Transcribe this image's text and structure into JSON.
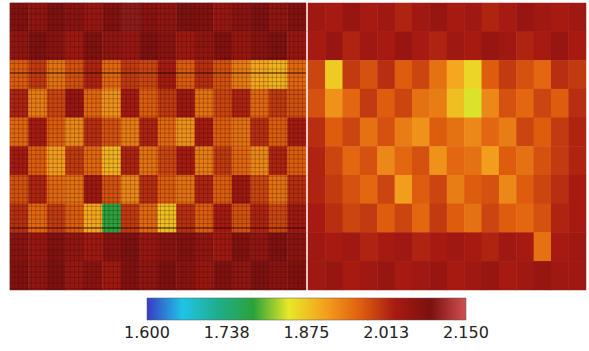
{
  "chart_data": {
    "type": "heatmap",
    "tick_labels": false,
    "panels": [
      {
        "grid": true,
        "cells": [
          [
            2.08,
            2.06,
            2.09,
            2.07,
            2.05,
            2.08,
            2.1,
            2.07,
            2.06,
            2.09,
            2.08,
            2.05,
            2.07,
            2.09,
            2.06,
            2.08
          ],
          [
            2.06,
            2.09,
            2.07,
            2.04,
            2.08,
            2.06,
            2.05,
            2.09,
            2.07,
            2.04,
            2.06,
            2.08,
            2.05,
            2.07,
            2.09,
            2.05
          ],
          [
            1.97,
            2.0,
            1.95,
            1.98,
            2.02,
            1.96,
            2.0,
            1.99,
            2.03,
            1.97,
            2.01,
            1.98,
            1.94,
            1.9,
            1.89,
            1.96
          ],
          [
            2.02,
            1.94,
            1.99,
            2.05,
            1.96,
            1.92,
            2.03,
            1.97,
            2.0,
            2.04,
            1.95,
            1.99,
            2.02,
            1.96,
            2.0,
            1.98
          ],
          [
            1.96,
            2.03,
            1.97,
            1.93,
            2.01,
            1.98,
            1.94,
            2.02,
            1.96,
            1.92,
            2.03,
            1.97,
            1.95,
            2.01,
            1.97,
            2.03
          ],
          [
            2.03,
            1.97,
            1.91,
            2.0,
            1.96,
            1.89,
            2.02,
            1.95,
            1.99,
            2.03,
            1.94,
            2.0,
            1.96,
            1.93,
            2.02,
            1.97
          ],
          [
            1.98,
            2.02,
            1.96,
            1.95,
            2.04,
            1.98,
            1.93,
            2.01,
            1.97,
            1.95,
            2.02,
            1.97,
            2.04,
            1.99,
            1.95,
            2.01
          ],
          [
            2.01,
            1.96,
            2.0,
            1.97,
            1.9,
            1.78,
            2.0,
            1.96,
            1.88,
            2.01,
            1.97,
            2.03,
            1.98,
            2.02,
            1.99,
            2.04
          ],
          [
            2.07,
            2.05,
            2.08,
            2.06,
            2.04,
            2.07,
            2.09,
            2.05,
            2.07,
            2.08,
            2.06,
            2.04,
            2.08,
            2.06,
            2.09,
            2.07
          ],
          [
            2.08,
            2.06,
            2.09,
            2.05,
            2.07,
            2.04,
            2.08,
            2.06,
            2.09,
            2.07,
            2.05,
            2.08,
            2.06,
            2.09,
            2.07,
            2.08
          ]
        ]
      },
      {
        "grid": false,
        "cells": [
          [
            2.04,
            2.03,
            2.05,
            2.03,
            2.04,
            2.02,
            2.04,
            2.05,
            2.03,
            2.04,
            2.02,
            2.03,
            2.05,
            2.04,
            2.03,
            2.04
          ],
          [
            2.03,
            2.05,
            2.02,
            2.04,
            2.03,
            2.05,
            2.03,
            2.02,
            2.04,
            2.03,
            2.05,
            2.04,
            2.02,
            2.03,
            2.05,
            2.03
          ],
          [
            1.99,
            1.87,
            2.0,
            1.98,
            2.01,
            1.97,
            1.99,
            1.95,
            1.9,
            1.86,
            1.97,
            2.0,
            1.98,
            1.96,
            2.01,
            2.0
          ],
          [
            1.98,
            1.92,
            1.96,
            2.0,
            1.97,
            1.99,
            1.95,
            1.94,
            1.88,
            1.84,
            1.93,
            1.98,
            1.96,
            1.99,
            1.97,
            2.01
          ],
          [
            2.01,
            1.97,
            1.99,
            1.95,
            1.98,
            1.94,
            1.92,
            1.97,
            1.95,
            1.93,
            1.96,
            1.94,
            1.99,
            1.97,
            2.0,
            2.02
          ],
          [
            2.02,
            1.99,
            1.96,
            1.98,
            1.93,
            1.96,
            1.98,
            1.92,
            1.96,
            1.95,
            1.91,
            1.97,
            1.95,
            1.98,
            2.0,
            2.02
          ],
          [
            2.02,
            2.0,
            1.98,
            1.96,
            1.99,
            1.91,
            1.97,
            1.99,
            1.94,
            1.97,
            1.98,
            1.93,
            1.97,
            1.99,
            2.01,
            2.03
          ],
          [
            2.03,
            2.01,
            1.99,
            2.0,
            1.97,
            1.99,
            1.96,
            2.0,
            1.97,
            1.95,
            1.99,
            1.97,
            1.96,
            1.98,
            2.02,
            2.03
          ],
          [
            2.04,
            2.03,
            2.04,
            2.02,
            2.03,
            2.04,
            2.02,
            2.03,
            2.04,
            2.03,
            2.02,
            2.04,
            2.03,
            1.95,
            2.03,
            2.04
          ],
          [
            2.04,
            2.05,
            2.03,
            2.04,
            2.05,
            2.03,
            2.04,
            2.05,
            2.03,
            2.04,
            2.05,
            2.03,
            2.04,
            2.05,
            2.04,
            2.04
          ]
        ]
      }
    ],
    "colorbar": {
      "range": [
        1.6,
        2.15
      ],
      "ticks": [
        {
          "value": 1.6,
          "label": "1.600"
        },
        {
          "value": 1.7375,
          "label": "1.738"
        },
        {
          "value": 1.875,
          "label": "1.875"
        },
        {
          "value": 2.0125,
          "label": "2.013"
        },
        {
          "value": 2.15,
          "label": "2.150"
        }
      ]
    }
  }
}
